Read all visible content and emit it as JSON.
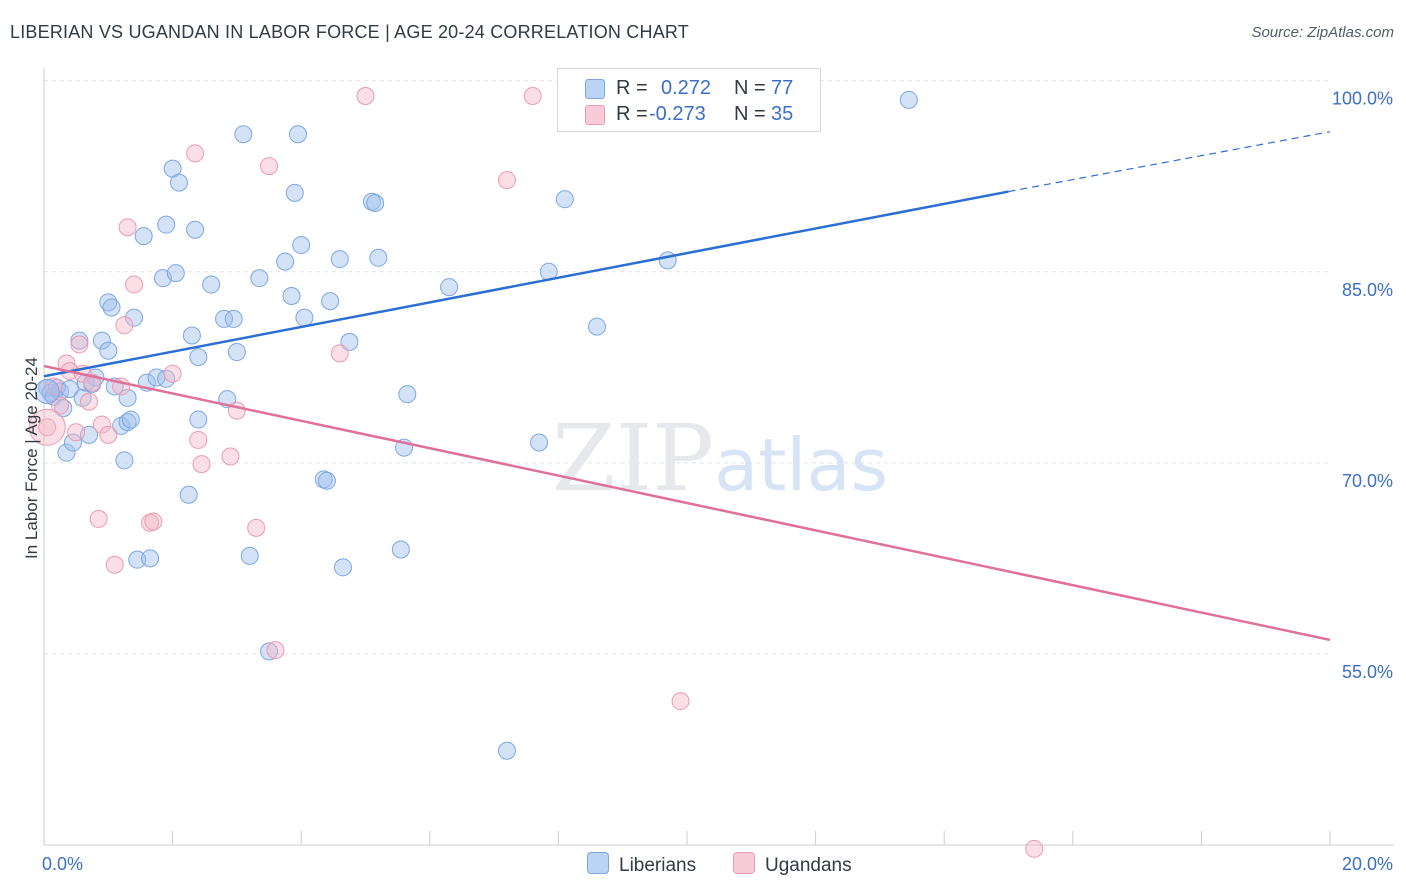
{
  "chart_data": {
    "type": "scatter",
    "title": "LIBERIAN VS UGANDAN IN LABOR FORCE | AGE 20-24 CORRELATION CHART",
    "source": "Source: ZipAtlas.com",
    "xlabel": "",
    "ylabel": "In Labor Force | Age 20-24",
    "xlim": [
      0,
      20
    ],
    "ylim": [
      40,
      101
    ],
    "x_tick_labels": [
      "0.0%",
      "20.0%"
    ],
    "y_tick_labels": [
      "100.0%",
      "85.0%",
      "70.0%",
      "55.0%"
    ],
    "y_ticks": [
      100,
      85,
      70,
      55
    ],
    "watermark": "ZIPatlas",
    "legend": {
      "rows": [
        {
          "r_label": "R =",
          "r_value": "0.272",
          "n_label": "N =",
          "n_value": "77"
        },
        {
          "r_label": "R =",
          "r_value": "-0.273",
          "n_label": "N =",
          "n_value": "35"
        }
      ]
    },
    "series": [
      {
        "name": "Liberians",
        "color": "#9dbfee",
        "line_color": "#2a6fd1",
        "trend": {
          "x0": 0,
          "y0": 76.8,
          "x1": 15.0,
          "y1": 91.3,
          "dashed_to_x": 20,
          "dashed_to_y": 96.0
        },
        "points": [
          [
            0.05,
            75.9
          ],
          [
            0.1,
            75.5
          ],
          [
            0.15,
            75.2
          ],
          [
            0.2,
            75.9
          ],
          [
            0.25,
            75.6
          ],
          [
            0.3,
            74.3
          ],
          [
            0.35,
            70.8
          ],
          [
            0.4,
            75.8
          ],
          [
            0.45,
            71.6
          ],
          [
            0.55,
            79.6
          ],
          [
            0.6,
            75.1
          ],
          [
            0.65,
            76.3
          ],
          [
            0.7,
            72.2
          ],
          [
            0.75,
            76.2
          ],
          [
            0.8,
            76.7
          ],
          [
            0.9,
            79.6
          ],
          [
            1.0,
            78.8
          ],
          [
            1.0,
            82.6
          ],
          [
            1.05,
            82.2
          ],
          [
            1.1,
            76.0
          ],
          [
            1.2,
            72.9
          ],
          [
            1.25,
            70.2
          ],
          [
            1.3,
            75.1
          ],
          [
            1.3,
            73.2
          ],
          [
            1.35,
            73.4
          ],
          [
            1.4,
            81.4
          ],
          [
            1.45,
            62.4
          ],
          [
            1.55,
            87.8
          ],
          [
            1.6,
            76.3
          ],
          [
            1.65,
            62.5
          ],
          [
            1.75,
            76.7
          ],
          [
            1.85,
            84.5
          ],
          [
            1.9,
            76.6
          ],
          [
            1.9,
            88.7
          ],
          [
            2.0,
            93.1
          ],
          [
            2.05,
            84.9
          ],
          [
            2.1,
            92.0
          ],
          [
            2.25,
            67.5
          ],
          [
            2.3,
            80.0
          ],
          [
            2.35,
            88.3
          ],
          [
            2.4,
            73.4
          ],
          [
            2.4,
            78.3
          ],
          [
            2.6,
            84.0
          ],
          [
            2.8,
            81.3
          ],
          [
            2.85,
            75.0
          ],
          [
            2.95,
            81.3
          ],
          [
            3.0,
            78.7
          ],
          [
            3.1,
            95.8
          ],
          [
            3.2,
            62.7
          ],
          [
            3.35,
            84.5
          ],
          [
            3.5,
            55.2
          ],
          [
            3.75,
            85.8
          ],
          [
            3.85,
            83.1
          ],
          [
            3.9,
            91.2
          ],
          [
            3.95,
            95.8
          ],
          [
            4.0,
            87.1
          ],
          [
            4.05,
            81.4
          ],
          [
            4.35,
            68.7
          ],
          [
            4.4,
            68.6
          ],
          [
            4.45,
            82.7
          ],
          [
            4.6,
            86.0
          ],
          [
            4.65,
            61.8
          ],
          [
            4.75,
            79.5
          ],
          [
            5.1,
            90.5
          ],
          [
            5.15,
            90.4
          ],
          [
            5.2,
            86.1
          ],
          [
            5.65,
            75.4
          ],
          [
            5.6,
            71.2
          ],
          [
            5.55,
            63.2
          ],
          [
            6.3,
            83.8
          ],
          [
            7.2,
            47.4
          ],
          [
            7.7,
            71.6
          ],
          [
            7.85,
            85.0
          ],
          [
            8.1,
            90.7
          ],
          [
            8.6,
            80.7
          ],
          [
            9.7,
            85.9
          ],
          [
            13.45,
            98.5
          ]
        ]
      },
      {
        "name": "Ugandans",
        "color": "#f4b8c8",
        "line_color": "#e0709a",
        "trend": {
          "x0": 0,
          "y0": 77.6,
          "x1": 20,
          "y1": 56.1
        },
        "points": [
          [
            0.05,
            72.8
          ],
          [
            0.15,
            76.0
          ],
          [
            0.25,
            74.5
          ],
          [
            0.35,
            77.8
          ],
          [
            0.4,
            77.2
          ],
          [
            0.5,
            72.4
          ],
          [
            0.55,
            79.3
          ],
          [
            0.6,
            77.0
          ],
          [
            0.7,
            74.8
          ],
          [
            0.75,
            76.3
          ],
          [
            0.85,
            65.6
          ],
          [
            0.9,
            73.0
          ],
          [
            1.0,
            72.2
          ],
          [
            1.1,
            62.0
          ],
          [
            1.2,
            76.0
          ],
          [
            1.25,
            80.8
          ],
          [
            1.3,
            88.5
          ],
          [
            1.4,
            84.0
          ],
          [
            1.65,
            65.3
          ],
          [
            1.7,
            65.4
          ],
          [
            2.0,
            77.0
          ],
          [
            2.35,
            94.3
          ],
          [
            2.4,
            71.8
          ],
          [
            2.45,
            69.9
          ],
          [
            2.9,
            70.5
          ],
          [
            3.0,
            74.1
          ],
          [
            3.3,
            64.9
          ],
          [
            3.5,
            93.3
          ],
          [
            3.6,
            55.3
          ],
          [
            4.6,
            78.6
          ],
          [
            5.0,
            98.8
          ],
          [
            7.2,
            92.2
          ],
          [
            7.6,
            98.8
          ],
          [
            9.9,
            51.3
          ],
          [
            15.4,
            39.7
          ]
        ]
      }
    ]
  }
}
